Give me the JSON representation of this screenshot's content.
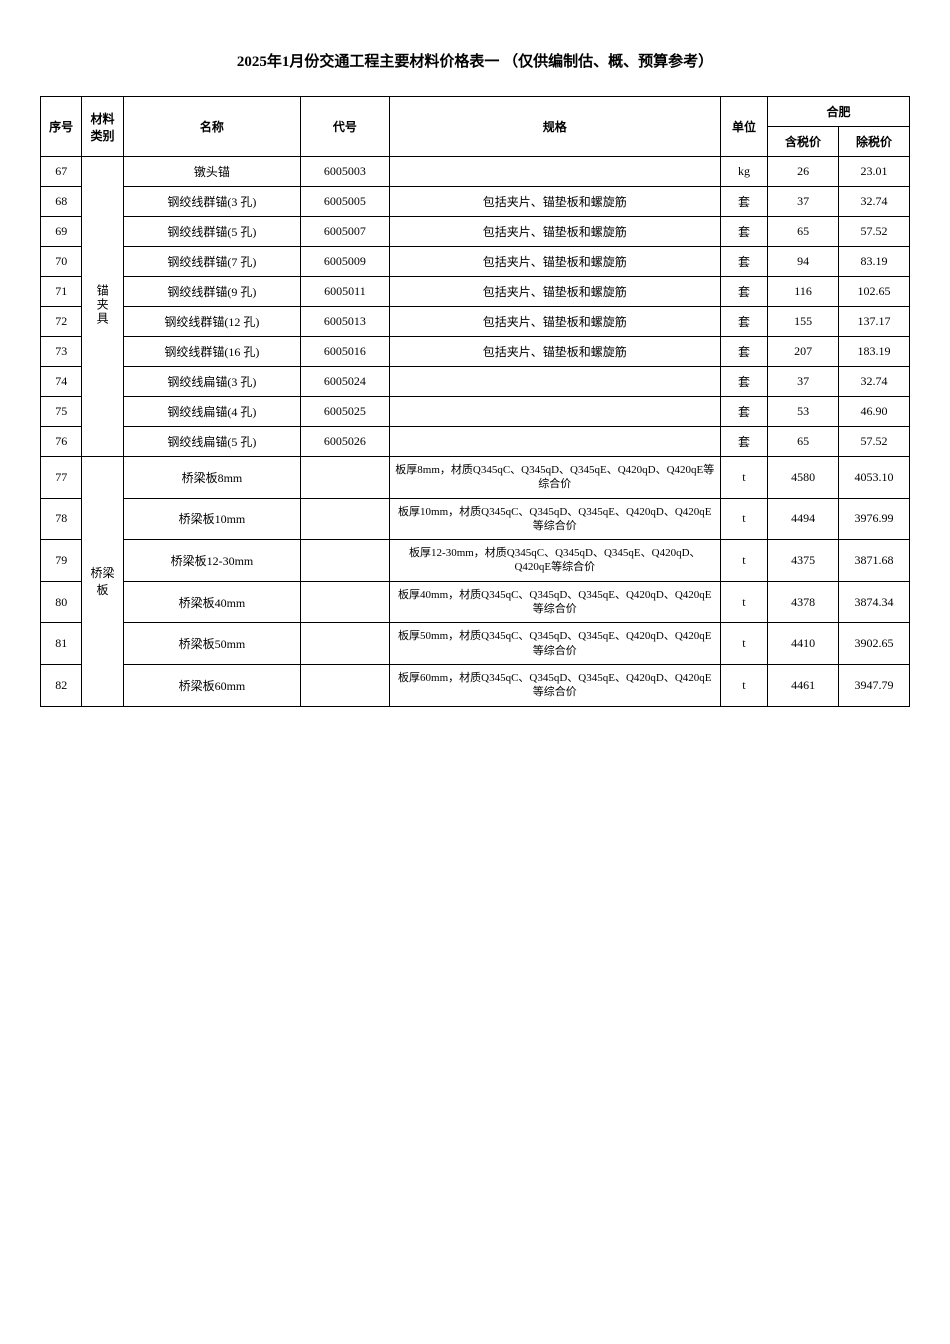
{
  "title": "2025年1月份交通工程主要材料价格表一 （仅供编制估、概、预算参考）",
  "headers": {
    "seq": "序号",
    "category": "材料类别",
    "name": "名称",
    "code": "代号",
    "spec": "规格",
    "unit": "单位",
    "city": "合肥",
    "priceWithTax": "含税价",
    "priceNoTax": "除税价"
  },
  "categories": {
    "anchor": "锚夹具",
    "bridge": "桥梁板"
  },
  "rows": [
    {
      "seq": "67",
      "name": "镦头锚",
      "code": "6005003",
      "spec": "",
      "unit": "kg",
      "withTax": "26",
      "noTax": "23.01"
    },
    {
      "seq": "68",
      "name": "钢绞线群锚(3 孔)",
      "code": "6005005",
      "spec": "包括夹片、锚垫板和螺旋筋",
      "unit": "套",
      "withTax": "37",
      "noTax": "32.74"
    },
    {
      "seq": "69",
      "name": "钢绞线群锚(5 孔)",
      "code": "6005007",
      "spec": "包括夹片、锚垫板和螺旋筋",
      "unit": "套",
      "withTax": "65",
      "noTax": "57.52"
    },
    {
      "seq": "70",
      "name": "钢绞线群锚(7 孔)",
      "code": "6005009",
      "spec": "包括夹片、锚垫板和螺旋筋",
      "unit": "套",
      "withTax": "94",
      "noTax": "83.19"
    },
    {
      "seq": "71",
      "name": "钢绞线群锚(9 孔)",
      "code": "6005011",
      "spec": "包括夹片、锚垫板和螺旋筋",
      "unit": "套",
      "withTax": "116",
      "noTax": "102.65"
    },
    {
      "seq": "72",
      "name": "钢绞线群锚(12 孔)",
      "code": "6005013",
      "spec": "包括夹片、锚垫板和螺旋筋",
      "unit": "套",
      "withTax": "155",
      "noTax": "137.17"
    },
    {
      "seq": "73",
      "name": "钢绞线群锚(16 孔)",
      "code": "6005016",
      "spec": "包括夹片、锚垫板和螺旋筋",
      "unit": "套",
      "withTax": "207",
      "noTax": "183.19"
    },
    {
      "seq": "74",
      "name": "钢绞线扁锚(3 孔)",
      "code": "6005024",
      "spec": "",
      "unit": "套",
      "withTax": "37",
      "noTax": "32.74"
    },
    {
      "seq": "75",
      "name": "钢绞线扁锚(4 孔)",
      "code": "6005025",
      "spec": "",
      "unit": "套",
      "withTax": "53",
      "noTax": "46.90"
    },
    {
      "seq": "76",
      "name": "钢绞线扁锚(5 孔)",
      "code": "6005026",
      "spec": "",
      "unit": "套",
      "withTax": "65",
      "noTax": "57.52"
    },
    {
      "seq": "77",
      "name": "桥梁板8mm",
      "code": "",
      "spec": "板厚8mm，材质Q345qC、Q345qD、Q345qE、Q420qD、Q420qE等综合价",
      "unit": "t",
      "withTax": "4580",
      "noTax": "4053.10"
    },
    {
      "seq": "78",
      "name": "桥梁板10mm",
      "code": "",
      "spec": "板厚10mm，材质Q345qC、Q345qD、Q345qE、Q420qD、Q420qE等综合价",
      "unit": "t",
      "withTax": "4494",
      "noTax": "3976.99"
    },
    {
      "seq": "79",
      "name": "桥梁板12-30mm",
      "code": "",
      "spec": "板厚12-30mm，材质Q345qC、Q345qD、Q345qE、Q420qD、Q420qE等综合价",
      "unit": "t",
      "withTax": "4375",
      "noTax": "3871.68"
    },
    {
      "seq": "80",
      "name": "桥梁板40mm",
      "code": "",
      "spec": "板厚40mm，材质Q345qC、Q345qD、Q345qE、Q420qD、Q420qE等综合价",
      "unit": "t",
      "withTax": "4378",
      "noTax": "3874.34"
    },
    {
      "seq": "81",
      "name": "桥梁板50mm",
      "code": "",
      "spec": "板厚50mm，材质Q345qC、Q345qD、Q345qE、Q420qD、Q420qE等综合价",
      "unit": "t",
      "withTax": "4410",
      "noTax": "3902.65"
    },
    {
      "seq": "82",
      "name": "桥梁板60mm",
      "code": "",
      "spec": "板厚60mm，材质Q345qC、Q345qD、Q345qE、Q420qD、Q420qE等综合价",
      "unit": "t",
      "withTax": "4461",
      "noTax": "3947.79"
    }
  ],
  "styling": {
    "table_border_color": "#000000",
    "background_color": "#ffffff",
    "font_family": "SimSun",
    "title_fontsize": 15,
    "body_fontsize": 12,
    "spec_fontsize": 11
  }
}
